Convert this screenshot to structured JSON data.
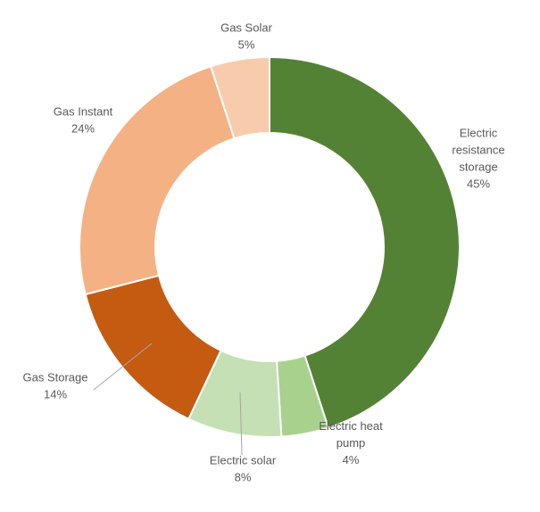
{
  "chart_data": {
    "type": "pie",
    "variant": "donut",
    "start_angle_deg": 0,
    "direction": "clockwise",
    "slices": [
      {
        "label_lines": [
          "Electric",
          "resistance",
          "storage"
        ],
        "value_label": "45%",
        "value": 45,
        "color": "#548235"
      },
      {
        "label_lines": [
          "Electric heat",
          "pump"
        ],
        "value_label": "4%",
        "value": 4,
        "color": "#a9d18e"
      },
      {
        "label_lines": [
          "Electric solar"
        ],
        "value_label": "8%",
        "value": 8,
        "color": "#c5e0b4"
      },
      {
        "label_lines": [
          "Gas Storage"
        ],
        "value_label": "14%",
        "value": 14,
        "color": "#c55a11"
      },
      {
        "label_lines": [
          "Gas Instant"
        ],
        "value_label": "24%",
        "value": 24,
        "color": "#f4b183"
      },
      {
        "label_lines": [
          "Gas Solar"
        ],
        "value_label": "5%",
        "value": 5,
        "color": "#f8cbad"
      }
    ]
  }
}
